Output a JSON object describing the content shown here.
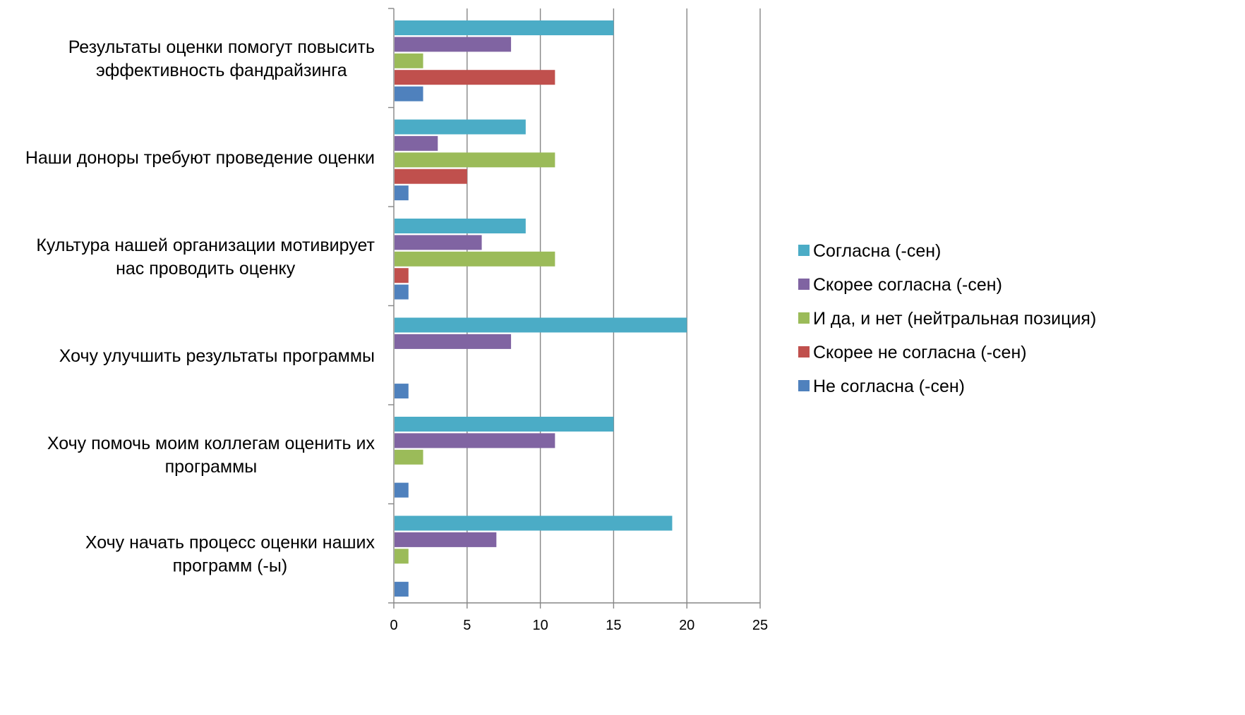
{
  "chart_data": {
    "type": "bar",
    "orientation": "horizontal",
    "title": "",
    "xlabel": "",
    "ylabel": "",
    "xlim": [
      0,
      25
    ],
    "xticks": [
      "0",
      "5",
      "10",
      "15",
      "20",
      "25"
    ],
    "grid": true,
    "legend_position": "right",
    "categories": [
      [
        "Результаты оценки помогут повысить",
        "эффективность фандрайзинга"
      ],
      [
        "Наши доноры требуют проведение оценки"
      ],
      [
        "Культура нашей организации мотивирует",
        "нас проводить оценку"
      ],
      [
        "Хочу улучшить результаты программы"
      ],
      [
        "Хочу помочь моим коллегам оценить их",
        "программы"
      ],
      [
        "Хочу начать процесс оценки наших",
        "программ (-ы)"
      ]
    ],
    "series": [
      {
        "name": "Согласна (-сен)",
        "color": "#4bacc6",
        "values": [
          15,
          9,
          9,
          20,
          15,
          19
        ]
      },
      {
        "name": "Скорее согласна (-сен)",
        "color": "#8064a2",
        "values": [
          8,
          3,
          6,
          8,
          11,
          7
        ]
      },
      {
        "name": "И да, и нет (нейтральная позиция)",
        "color": "#9bbb59",
        "values": [
          2,
          11,
          11,
          0,
          2,
          1
        ]
      },
      {
        "name": "Скорее не согласна (-сен)",
        "color": "#c0504d",
        "values": [
          11,
          5,
          1,
          0,
          0,
          0
        ]
      },
      {
        "name": "Не согласна (-сен)",
        "color": "#4f81bd",
        "values": [
          2,
          1,
          1,
          1,
          1,
          1
        ]
      }
    ]
  }
}
